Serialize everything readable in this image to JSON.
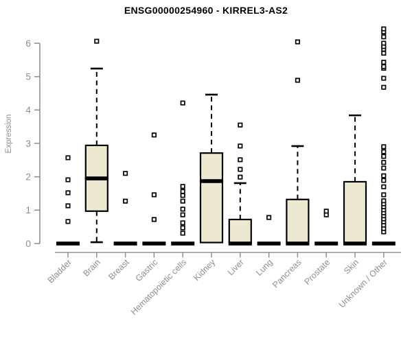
{
  "chart_data": {
    "type": "boxplot",
    "title": "ENSG00000254960 - KIRREL3-AS2",
    "ylabel": "Expression",
    "yticks": [
      0,
      1,
      2,
      3,
      4,
      5,
      6
    ],
    "ylim": [
      0,
      6.5
    ],
    "grid": false,
    "legend_position": "none",
    "box_fill": "#EDE8D0",
    "box_stroke": "#000000",
    "outlier_fill": "#FFFFFF",
    "axis_color": "#8F8F8F",
    "categories": [
      "Bladder",
      "Brain",
      "Breast",
      "Gastric",
      "Hematopoietic cells",
      "Kidney",
      "Liver",
      "Lung",
      "Pancreas",
      "Prostate",
      "Skin",
      "Unknown / Other"
    ],
    "boxes": [
      {
        "category": "Bladder",
        "low": 0,
        "q1": 0,
        "median": 0,
        "q3": 0,
        "high": 0,
        "outliers": [
          0.66,
          1.13,
          1.52,
          1.91,
          2.57
        ]
      },
      {
        "category": "Brain",
        "low": 0.04,
        "q1": 0.97,
        "median": 1.95,
        "q3": 2.94,
        "high": 5.24,
        "outliers": [
          6.06
        ]
      },
      {
        "category": "Breast",
        "low": 0,
        "q1": 0,
        "median": 0,
        "q3": 0,
        "high": 0,
        "outliers": [
          1.27,
          2.1
        ]
      },
      {
        "category": "Gastric",
        "low": 0,
        "q1": 0,
        "median": 0,
        "q3": 0,
        "high": 0,
        "outliers": [
          0.72,
          1.46,
          3.25
        ]
      },
      {
        "category": "Hematopoietic cells",
        "low": 0,
        "q1": 0,
        "median": 0,
        "q3": 0,
        "high": 0,
        "outliers": [
          0.31,
          0.47,
          0.62,
          0.86,
          1.03,
          1.27,
          1.44,
          1.56,
          1.71,
          4.21
        ]
      },
      {
        "category": "Kidney",
        "low": 0.03,
        "q1": 0.03,
        "median": 1.87,
        "q3": 2.71,
        "high": 4.46,
        "outliers": []
      },
      {
        "category": "Liver",
        "low": 0,
        "q1": 0,
        "median": 0,
        "q3": 0.72,
        "high": 1.81,
        "outliers": [
          1.99,
          2.22,
          2.51,
          2.92,
          3.55
        ]
      },
      {
        "category": "Lung",
        "low": 0,
        "q1": 0,
        "median": 0,
        "q3": 0,
        "high": 0,
        "outliers": [
          0.78
        ]
      },
      {
        "category": "Pancreas",
        "low": 0,
        "q1": 0,
        "median": 0,
        "q3": 1.32,
        "high": 2.92,
        "outliers": [
          4.89,
          6.04
        ]
      },
      {
        "category": "Prostate",
        "low": 0,
        "q1": 0,
        "median": 0,
        "q3": 0,
        "high": 0,
        "outliers": [
          0.86,
          0.97
        ]
      },
      {
        "category": "Skin",
        "low": 0,
        "q1": 0,
        "median": 0,
        "q3": 1.85,
        "high": 3.84,
        "outliers": []
      },
      {
        "category": "Unknown / Other",
        "low": 0,
        "q1": 0,
        "median": 0,
        "q3": 0,
        "high": 0,
        "outliers": [
          0.35,
          0.45,
          0.55,
          0.65,
          0.74,
          0.83,
          0.92,
          1.01,
          1.1,
          1.19,
          1.28,
          1.46,
          1.7,
          1.89,
          2.03,
          2.26,
          2.43,
          2.61,
          2.75,
          2.9,
          4.68,
          4.95,
          5.25,
          5.3,
          5.43,
          5.7,
          5.82,
          5.9,
          6.0,
          6.19,
          6.34,
          6.43
        ]
      }
    ]
  }
}
